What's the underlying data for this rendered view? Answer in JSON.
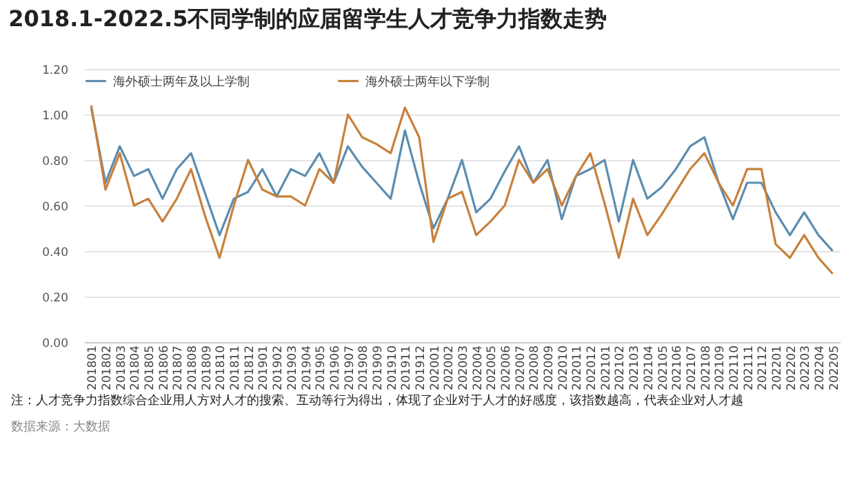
{
  "chart_data": {
    "type": "line",
    "title": "2018.1-2022.5不同学制的应届留学生人才竞争力指数走势",
    "categories": [
      "201801",
      "201802",
      "201803",
      "201804",
      "201805",
      "201806",
      "201807",
      "201808",
      "201809",
      "201810",
      "201811",
      "201812",
      "201901",
      "201902",
      "201903",
      "201904",
      "201905",
      "201906",
      "201907",
      "201908",
      "201909",
      "201910",
      "201911",
      "201912",
      "202001",
      "202002",
      "202003",
      "202004",
      "202005",
      "202006",
      "202007",
      "202008",
      "202009",
      "202010",
      "202011",
      "202012",
      "202101",
      "202102",
      "202103",
      "202104",
      "202105",
      "202106",
      "202107",
      "202108",
      "202109",
      "202110",
      "202111",
      "202112",
      "202201",
      "202202",
      "202203",
      "202204",
      "202205"
    ],
    "series": [
      {
        "name": "海外硕士两年及以上学制",
        "color": "#5b8db0",
        "values": [
          1.03,
          0.7,
          0.86,
          0.73,
          0.76,
          0.63,
          0.76,
          0.83,
          0.65,
          0.47,
          0.63,
          0.66,
          0.76,
          0.64,
          0.76,
          0.73,
          0.83,
          0.7,
          0.86,
          0.77,
          0.7,
          0.63,
          0.93,
          0.7,
          0.5,
          0.63,
          0.8,
          0.57,
          0.63,
          0.75,
          0.86,
          0.7,
          0.8,
          0.54,
          0.73,
          0.76,
          0.8,
          0.53,
          0.8,
          0.63,
          0.68,
          0.76,
          0.86,
          0.9,
          0.7,
          0.54,
          0.7,
          0.7,
          0.57,
          0.47,
          0.57,
          0.47,
          0.4
        ]
      },
      {
        "name": "海外硕士两年以下学制",
        "color": "#c8803a",
        "values": [
          1.04,
          0.67,
          0.83,
          0.6,
          0.63,
          0.53,
          0.63,
          0.76,
          0.55,
          0.37,
          0.6,
          0.8,
          0.67,
          0.64,
          0.64,
          0.6,
          0.76,
          0.7,
          1.0,
          0.9,
          0.87,
          0.83,
          1.03,
          0.9,
          0.44,
          0.63,
          0.66,
          0.47,
          0.53,
          0.6,
          0.8,
          0.7,
          0.76,
          0.6,
          0.73,
          0.83,
          0.61,
          0.37,
          0.63,
          0.47,
          0.56,
          0.66,
          0.76,
          0.83,
          0.7,
          0.6,
          0.76,
          0.76,
          0.43,
          0.37,
          0.47,
          0.37,
          0.3
        ]
      }
    ],
    "ylim": [
      0,
      1.2
    ],
    "yticks": [
      {
        "value": 0,
        "label": "0.00"
      },
      {
        "value": 0.2,
        "label": "0.20"
      },
      {
        "value": 0.4,
        "label": "0.40"
      },
      {
        "value": 0.6,
        "label": "0.60"
      },
      {
        "value": 0.8,
        "label": "0.80"
      },
      {
        "value": 1.0,
        "label": "1.00"
      },
      {
        "value": 1.2,
        "label": "1.20"
      }
    ],
    "grid": "y",
    "legend": "top",
    "annotations": [
      "注：人才竞争力指数综合企业用人方对人才的搜索、互动等行为得出，体现了企业对于人才的好感度，该指数越高，代表企业对人才越",
      "数据来源：大数据"
    ]
  }
}
